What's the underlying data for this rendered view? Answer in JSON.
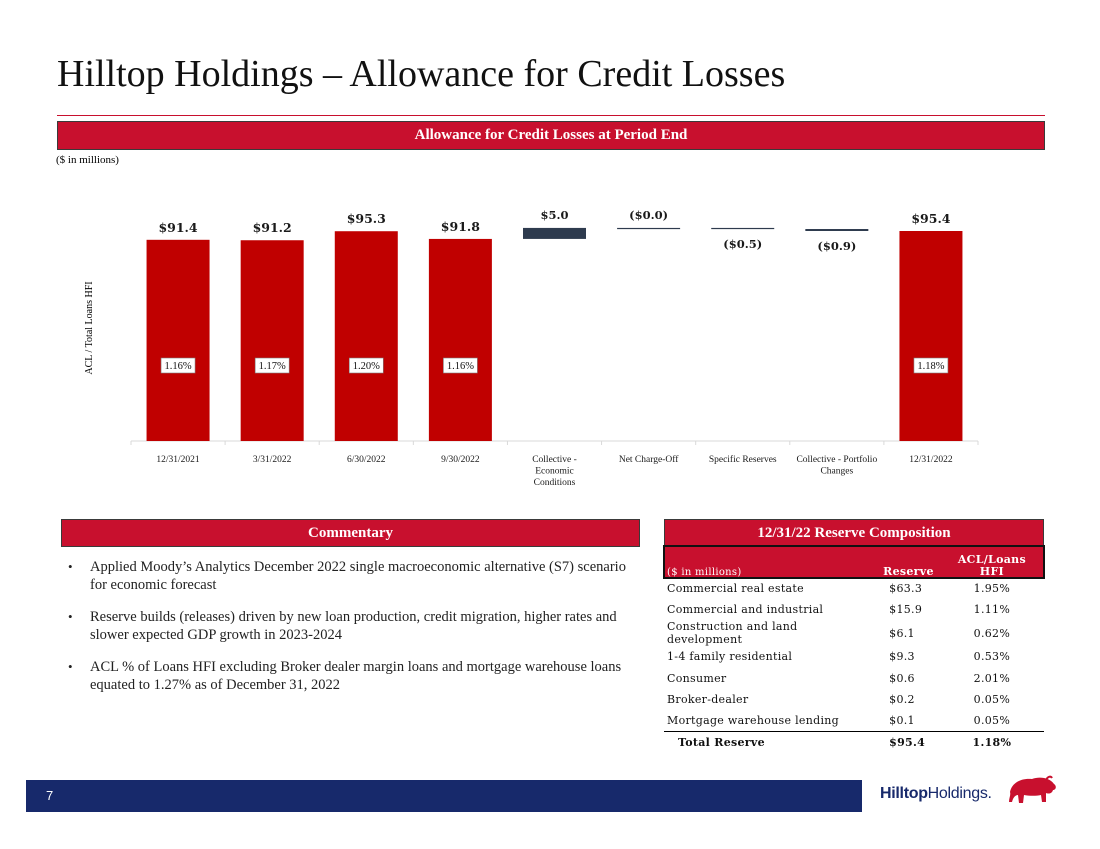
{
  "page": {
    "title": "Hilltop Holdings – Allowance for Credit Losses",
    "page_number": "7",
    "logo": {
      "strong": "Hilltop",
      "rest": "Holdings",
      "mark": "."
    }
  },
  "chart_section": {
    "banner": "Allowance for Credit Losses at Period End",
    "units_note": "($ in millions)"
  },
  "chart_data": {
    "type": "bar",
    "subtype": "waterfall",
    "title": "Allowance for Credit Losses at Period End",
    "ylabel": "ACL / Total Loans HFI",
    "xlabel": "",
    "units": "$ in millions",
    "categories": [
      "12/31/2021",
      "3/31/2022",
      "6/30/2022",
      "9/30/2022",
      "Collective - Economic Conditions",
      "Net Charge-Off",
      "Specific Reserves",
      "Collective - Portfolio Changes",
      "12/31/2022"
    ],
    "category_lines": [
      [
        "12/31/2021"
      ],
      [
        "3/31/2022"
      ],
      [
        "6/30/2022"
      ],
      [
        "9/30/2022"
      ],
      [
        "Collective -",
        "Economic",
        "Conditions"
      ],
      [
        "Net Charge-Off"
      ],
      [
        "Specific Reserves"
      ],
      [
        "Collective - Portfolio",
        "Changes"
      ],
      [
        "12/31/2022"
      ]
    ],
    "kinds": [
      "total",
      "total",
      "total",
      "total",
      "change",
      "change",
      "change",
      "change",
      "total"
    ],
    "values": [
      91.4,
      91.2,
      95.3,
      91.8,
      5.0,
      -0.0,
      -0.5,
      -0.9,
      95.4
    ],
    "value_labels": [
      "$91.4",
      "$91.2",
      "$95.3",
      "$91.8",
      "$5.0",
      "($0.0)",
      "($0.5)",
      "($0.9)",
      "$95.4"
    ],
    "ratio_labels": [
      "1.16%",
      "1.17%",
      "1.20%",
      "1.16%",
      "",
      "",
      "",
      "",
      "1.18%"
    ],
    "colors": {
      "total": "#c00000",
      "increase": "#2e3b4e",
      "decrease": "#2e3b4e"
    }
  },
  "commentary": {
    "banner": "Commentary",
    "bullets": [
      "Applied Moody’s Analytics December 2022 single macroeconomic alternative (S7) scenario for economic forecast",
      "Reserve builds (releases) driven by new loan production, credit migration, higher rates and slower expected GDP growth in 2023-2024",
      "ACL % of Loans HFI excluding Broker dealer margin loans and mortgage warehouse loans equated to 1.27% as of December 31, 2022"
    ]
  },
  "composition": {
    "banner": "12/31/22 Reserve Composition",
    "headers": [
      "($ in millions)",
      "Reserve",
      "ACL/Loans HFI"
    ],
    "rows": [
      [
        "Commercial real estate",
        "$63.3",
        "1.95%"
      ],
      [
        "Commercial and industrial",
        "$15.9",
        "1.11%"
      ],
      [
        "Construction and land development",
        "$6.1",
        "0.62%"
      ],
      [
        "1-4 family residential",
        "$9.3",
        "0.53%"
      ],
      [
        "Consumer",
        "$0.6",
        "2.01%"
      ],
      [
        "Broker-dealer",
        "$0.2",
        "0.05%"
      ],
      [
        "Mortgage warehouse lending",
        "$0.1",
        "0.05%"
      ]
    ],
    "total": [
      "Total Reserve",
      "$95.4",
      "1.18%"
    ]
  }
}
